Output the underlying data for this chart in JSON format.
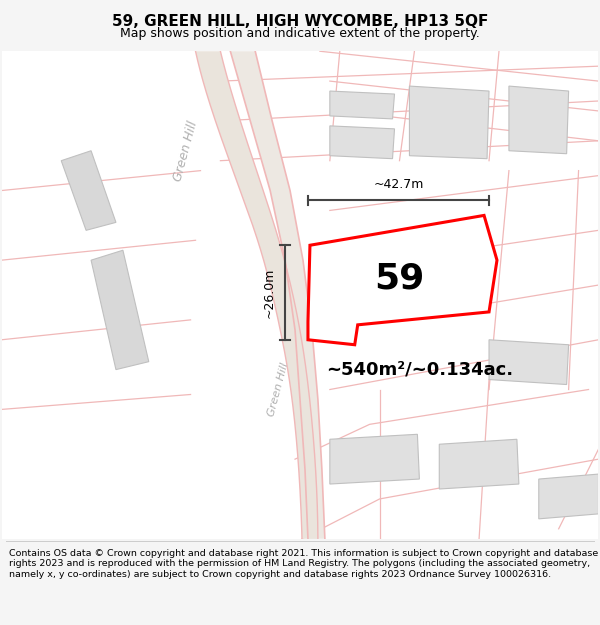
{
  "title": "59, GREEN HILL, HIGH WYCOMBE, HP13 5QF",
  "subtitle": "Map shows position and indicative extent of the property.",
  "footer": "Contains OS data © Crown copyright and database right 2021. This information is subject to Crown copyright and database rights 2023 and is reproduced with the permission of HM Land Registry. The polygons (including the associated geometry, namely x, y co-ordinates) are subject to Crown copyright and database rights 2023 Ordnance Survey 100026316.",
  "bg_color": "#f5f5f5",
  "map_bg": "#f7f5f3",
  "area_label": "~540m²/~0.134ac.",
  "plot_number": "59",
  "width_label": "~42.7m",
  "height_label": "~26.0m",
  "road_label_lower": "Green Hill",
  "road_label_upper": "Green Hill",
  "road_color": "#f0b8b8",
  "road_fill": "#e8e0d8",
  "plot_color": "#ff0000",
  "block_color": "#dcdcdc",
  "block_edge": "#c0c0c0",
  "title_fontsize": 11,
  "subtitle_fontsize": 9,
  "footer_fontsize": 6.8
}
